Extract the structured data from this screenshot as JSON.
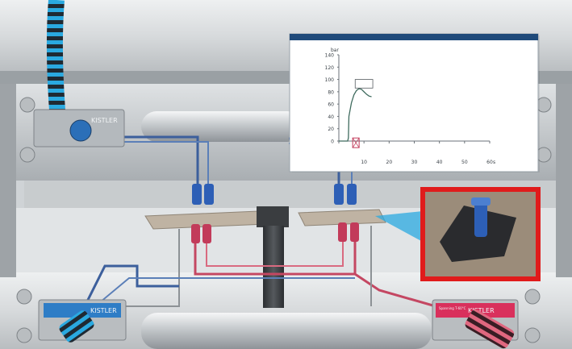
{
  "brand": {
    "top_left_label": "KISTLER",
    "bottom_left_label": "KISTLER",
    "bottom_right_label": "KISTLER",
    "bottom_right_sublabel": "Spanning T-60°C"
  },
  "chart_data": {
    "type": "line",
    "ylabel": "bar",
    "xlabel": "s",
    "xlim": [
      0,
      60
    ],
    "ylim": [
      0,
      140
    ],
    "x_ticks": [
      0,
      10,
      20,
      30,
      40,
      50,
      60
    ],
    "y_ticks": [
      0,
      20,
      40,
      60,
      80,
      100,
      120,
      140
    ],
    "series": [
      {
        "x": [
          0,
          3.5,
          3.8,
          4,
          5,
          6,
          7,
          8,
          9,
          10,
          11,
          12,
          13
        ],
        "y": [
          0,
          0,
          5,
          40,
          62,
          75,
          82,
          85,
          84,
          80,
          76,
          73,
          72
        ]
      }
    ],
    "colors": {
      "line": "#3f6b5e",
      "frame_header": "#1f4a7a",
      "marker_box": "#c23b5a"
    }
  },
  "colors": {
    "cable_blue": "#2aa9e0",
    "kistler_red": "#d9305c",
    "highlight_red": "#e01b1b"
  }
}
